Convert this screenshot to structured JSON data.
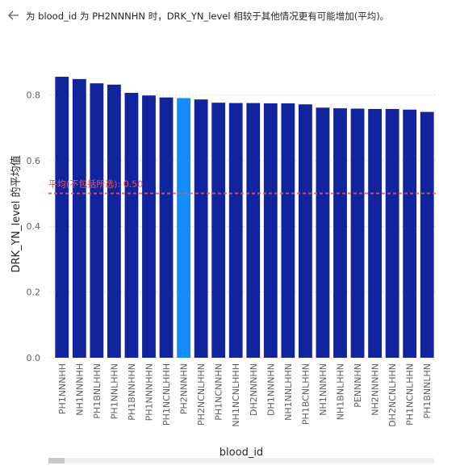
{
  "header": {
    "back_icon": "back-arrow-icon",
    "text": "为 blood_id 为 PH2NNNHN 时，DRK_YN_level 相较于其他情况更有可能增加(平均)。"
  },
  "chart_data": {
    "type": "bar",
    "xlabel": "blood_id",
    "ylabel": "DRK_YN_level 的平均值",
    "ylim": [
      0,
      0.86
    ],
    "yticks": [
      "0.0",
      "0.2",
      "0.4",
      "0.6",
      "0.8"
    ],
    "ytick_values": [
      0,
      0.2,
      0.4,
      0.6,
      0.8
    ],
    "categories": [
      "PH1NNNHH",
      "NH1NNNHH",
      "PH1BNLHHN",
      "PH1NNLHHN",
      "PH1BNNHHN",
      "PH1NNNHHN",
      "PH1NCNLHHH",
      "PH2NNNHN",
      "PH2NCNLHHN",
      "PH1NCNNHN",
      "NH1NCNLHHH",
      "DH2NNNHN",
      "DH1NNNHN",
      "NH1NNLHHN",
      "PH1BCNLHHN",
      "NH1NNNHN",
      "NH1BNLHHN",
      "PENNNHN",
      "NH2NNNHN",
      "DH2NCNLHHN",
      "PH1NCNLHHN",
      "PH1BNNLHN"
    ],
    "values": [
      0.855,
      0.848,
      0.835,
      0.831,
      0.806,
      0.798,
      0.792,
      0.79,
      0.786,
      0.776,
      0.775,
      0.775,
      0.774,
      0.774,
      0.771,
      0.761,
      0.759,
      0.758,
      0.757,
      0.757,
      0.755,
      0.748
    ],
    "highlight": "PH2NNNHN",
    "colors": {
      "bar": "#12239e",
      "highlight": "#118dff",
      "reference": "#e8575f",
      "grid": "#c8c6c4"
    },
    "reference_line": {
      "value": 0.5,
      "label": "平均(不包括所选): 0.50"
    },
    "grid": true
  }
}
